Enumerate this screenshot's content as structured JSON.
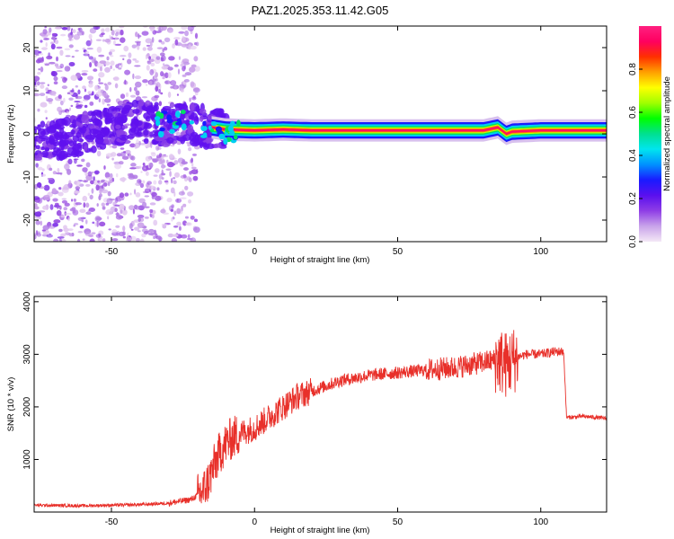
{
  "title": "PAZ1.2025.353.11.42.G05",
  "chart_data": [
    {
      "type": "heatmap",
      "name": "spectrogram",
      "xlabel": "Height of straight line (km)",
      "ylabel": "Frequency (Hz)",
      "xlim": [
        -77,
        123
      ],
      "ylim": [
        -25,
        25
      ],
      "xticks": [
        -50,
        0,
        50,
        100
      ],
      "yticks": [
        -20,
        -10,
        0,
        10,
        20
      ],
      "colorbar": {
        "label": "Normalized spectral amplitude",
        "range": [
          0,
          1
        ],
        "ticks": [
          0.0,
          0.2,
          0.4,
          0.6,
          0.8
        ],
        "tick_labels": [
          "0.0",
          "0.2",
          "0.4",
          "0.6",
          "0.8"
        ],
        "colors": [
          "#f4e8f6",
          "#c9a4ea",
          "#8f3ee6",
          "#5a10ee",
          "#1a1aff",
          "#0090ff",
          "#00e5ef",
          "#00e090",
          "#00ff00",
          "#a0ff00",
          "#ffff00",
          "#ffa000",
          "#ff3000",
          "#ff0060",
          "#ff2080"
        ]
      },
      "ridge": [
        {
          "x": -70,
          "f": -2
        },
        {
          "x": -60,
          "f": 0
        },
        {
          "x": -50,
          "f": 1.5
        },
        {
          "x": -40,
          "f": 3
        },
        {
          "x": -30,
          "f": 2
        },
        {
          "x": -25,
          "f": 3
        },
        {
          "x": -20,
          "f": 2
        },
        {
          "x": -15,
          "f": 1.5
        },
        {
          "x": -10,
          "f": 1
        },
        {
          "x": 0,
          "f": 0.8
        },
        {
          "x": 10,
          "f": 1
        },
        {
          "x": 20,
          "f": 0.8
        },
        {
          "x": 50,
          "f": 0.8
        },
        {
          "x": 80,
          "f": 0.8
        },
        {
          "x": 85,
          "f": 1.5
        },
        {
          "x": 88,
          "f": 0
        },
        {
          "x": 90,
          "f": 0.5
        },
        {
          "x": 100,
          "f": 0.8
        },
        {
          "x": 123,
          "f": 0.8
        }
      ]
    },
    {
      "type": "line",
      "name": "snr",
      "xlabel": "Height of straight line (km)",
      "ylabel": "SNR (10 * v/v)",
      "xlim": [
        -77,
        123
      ],
      "ylim": [
        0,
        4100
      ],
      "xticks": [
        -50,
        0,
        50,
        100
      ],
      "yticks": [
        1000,
        2000,
        3000,
        4000
      ],
      "color": "#e8302a",
      "series": [
        {
          "name": "SNR trend",
          "x": [
            -77,
            -60,
            -40,
            -30,
            -22,
            -18,
            -16,
            -14,
            -12,
            -10,
            -8,
            -5,
            0,
            5,
            10,
            15,
            20,
            25,
            30,
            40,
            50,
            60,
            70,
            75,
            80,
            85,
            88,
            92,
            95,
            100,
            105,
            108,
            109,
            110,
            115,
            123
          ],
          "y": [
            130,
            120,
            140,
            170,
            240,
            400,
            600,
            900,
            1150,
            1300,
            1400,
            1500,
            1600,
            1800,
            2000,
            2200,
            2300,
            2400,
            2500,
            2600,
            2650,
            2700,
            2750,
            2800,
            2850,
            2900,
            2800,
            2950,
            3000,
            3000,
            3050,
            3050,
            1800,
            1800,
            1820,
            1780
          ]
        }
      ]
    }
  ],
  "panels": {
    "top_xtick_labels": [
      "-50",
      "0",
      "50",
      "100"
    ],
    "top_ytick_labels": [
      "20",
      "10",
      "0",
      "-10",
      "-20"
    ],
    "bottom_xtick_labels": [
      "-50",
      "0",
      "50",
      "100"
    ],
    "bottom_ytick_labels": [
      "4000",
      "3000",
      "2000",
      "1000"
    ]
  }
}
